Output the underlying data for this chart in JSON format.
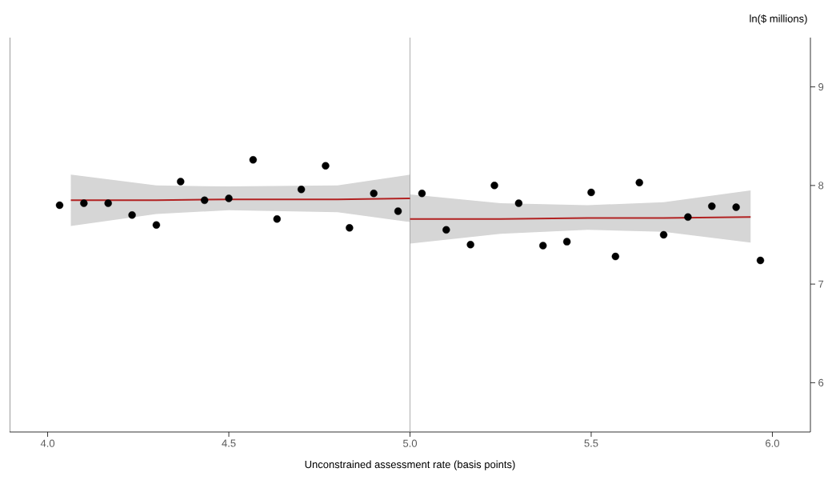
{
  "chart_data": {
    "type": "scatter",
    "xlabel": "Unconstrained assessment rate (basis points)",
    "ylabel": "ln($ millions)",
    "xlim": [
      3.895,
      6.105
    ],
    "ylim": [
      5.5,
      9.5
    ],
    "xticks": [
      {
        "value": 4.0,
        "label": "4.0"
      },
      4.5,
      {
        "value": 5.0,
        "label": "5.0"
      },
      5.5,
      {
        "value": 6.0,
        "label": "6.0"
      }
    ],
    "yticks": [
      6,
      7,
      8,
      9
    ],
    "grid": false,
    "marker": "circle",
    "ref_lines": [
      {
        "axis": "x",
        "value": 5.0,
        "color": "#999999"
      }
    ],
    "series": [
      {
        "color": "#000000",
        "x": [
          4.033,
          4.1,
          4.167,
          4.233,
          4.3,
          4.367,
          4.433,
          4.5,
          4.567,
          4.633,
          4.7,
          4.767,
          4.833,
          4.9,
          4.967,
          5.033,
          5.1,
          5.167,
          5.233,
          5.3,
          5.367,
          5.433,
          5.5,
          5.567,
          5.633,
          5.7,
          5.767,
          5.833,
          5.9,
          5.967
        ],
        "values": [
          7.8,
          7.82,
          7.82,
          7.7,
          7.6,
          8.04,
          7.85,
          7.87,
          8.26,
          7.66,
          7.96,
          8.2,
          7.57,
          7.92,
          7.74,
          7.92,
          7.55,
          7.4,
          8.0,
          7.82,
          7.39,
          7.43,
          7.93,
          7.28,
          8.03,
          7.5,
          7.68,
          7.79,
          7.78,
          7.24
        ]
      },
      {
        "type": "line",
        "marker": "none",
        "color": "#b22222",
        "x": [
          4.064,
          4.3,
          4.5,
          4.8,
          5.0
        ],
        "values": [
          7.85,
          7.85,
          7.86,
          7.86,
          7.87
        ],
        "lower": [
          7.59,
          7.71,
          7.75,
          7.73,
          7.63
        ],
        "upper": [
          8.11,
          8.0,
          7.99,
          8.0,
          8.11
        ]
      },
      {
        "type": "line",
        "marker": "none",
        "color": "#b22222",
        "x": [
          5.0,
          5.25,
          5.49,
          5.7,
          5.94
        ],
        "values": [
          7.66,
          7.66,
          7.67,
          7.67,
          7.68
        ],
        "lower": [
          7.41,
          7.51,
          7.55,
          7.53,
          7.42
        ],
        "upper": [
          7.91,
          7.82,
          7.8,
          7.83,
          7.95
        ]
      }
    ]
  }
}
